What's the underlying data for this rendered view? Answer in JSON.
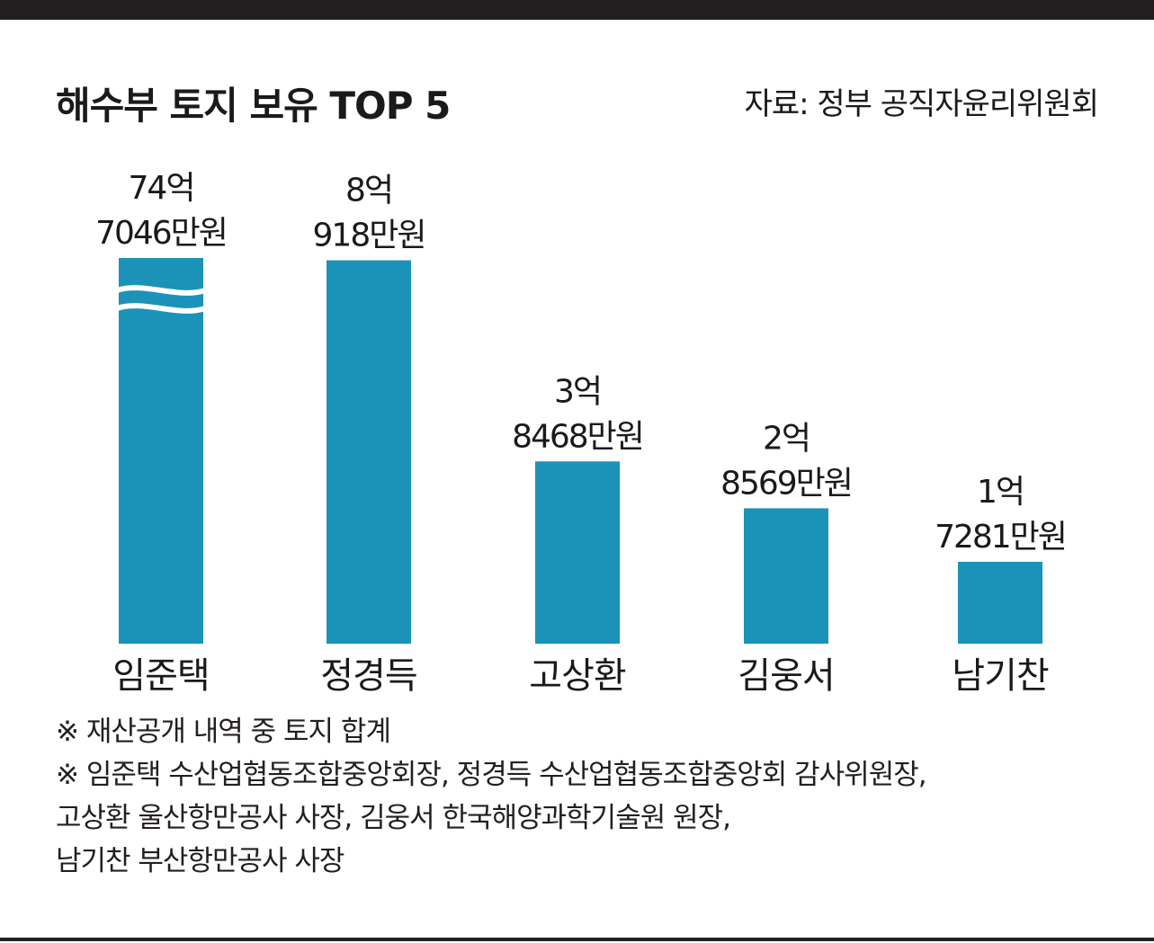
{
  "title": "해수부 토지 보유 TOP 5",
  "source": "자료: 정부 공직자윤리위원회",
  "colors": {
    "bar": "#1b93b8",
    "text": "#1a1a1a",
    "frame": "#231f20"
  },
  "chart_data": {
    "type": "bar",
    "title": "해수부 토지 보유 TOP 5",
    "categories": [
      "임준택",
      "정경득",
      "고상환",
      "김웅서",
      "남기찬"
    ],
    "values": [
      74.7046,
      8.0918,
      3.8468,
      2.8569,
      1.7281
    ],
    "value_unit": "억원",
    "value_labels": [
      [
        "74억",
        "7046만원"
      ],
      [
        "8억",
        "918만원"
      ],
      [
        "3억",
        "8468만원"
      ],
      [
        "2억",
        "8569만원"
      ],
      [
        "1억",
        "7281만원"
      ]
    ],
    "axis_break_on": "임준택",
    "grid": false,
    "legend": "none"
  },
  "notes": [
    "※ 재산공개 내역 중 토지 합계",
    "※ 임준택 수산업협동조합중앙회장, 정경득 수산업협동조합중앙회 감사위원장,",
    "고상환 울산항만공사 사장, 김웅서 한국해양과학기술원 원장,",
    "남기찬 부산항만공사 사장"
  ]
}
